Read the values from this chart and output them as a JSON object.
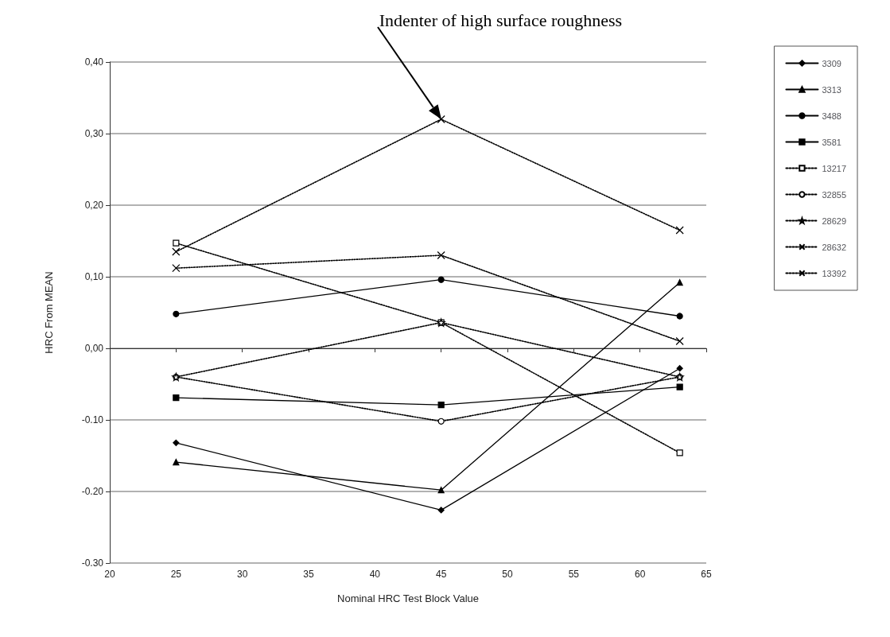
{
  "chart_data": {
    "type": "line",
    "xlabel": "Nominal HRC Test Block Value",
    "ylabel": "HRC From MEAN",
    "x": [
      25,
      45,
      63
    ],
    "xlim": [
      20,
      65
    ],
    "xticks": [
      20,
      25,
      30,
      35,
      40,
      45,
      50,
      55,
      60,
      65
    ],
    "ylim": [
      -0.3,
      0.4
    ],
    "yticks": [
      {
        "value": -0.3,
        "label": "-0.30"
      },
      {
        "value": -0.2,
        "label": "-0.20"
      },
      {
        "value": -0.1,
        "label": "-0.10"
      },
      {
        "value": 0,
        "label": "0,00"
      },
      {
        "value": 0.1,
        "label": "0,10"
      },
      {
        "value": 0.2,
        "label": "0,20"
      },
      {
        "value": 0.3,
        "label": "0,30"
      },
      {
        "value": 0.4,
        "label": "0,40"
      }
    ],
    "grid": "y",
    "legend": "right",
    "annotations": [
      "Indenter of high surface roughness"
    ],
    "series": [
      {
        "name": "3309",
        "color": "#000000",
        "marker": "diamond",
        "line_style": "solid",
        "values": [
          -0.132,
          -0.226,
          -0.028
        ]
      },
      {
        "name": "3313",
        "color": "#000000",
        "marker": "triangle",
        "line_style": "solid",
        "values": [
          -0.159,
          -0.198,
          0.092
        ]
      },
      {
        "name": "3488",
        "color": "#000000",
        "marker": "circle",
        "line_style": "solid",
        "values": [
          0.048,
          0.096,
          0.045
        ]
      },
      {
        "name": "3581",
        "color": "#000000",
        "marker": "square",
        "line_style": "solid",
        "values": [
          -0.069,
          -0.079,
          -0.054
        ]
      },
      {
        "name": "13217",
        "color": "#000000",
        "marker": "square",
        "line_style": "dotted",
        "values": [
          0.147,
          0.036,
          -0.146
        ]
      },
      {
        "name": "32855",
        "color": "#000000",
        "marker": "circle",
        "line_style": "dotted",
        "values": [
          -0.04,
          -0.102,
          -0.04
        ]
      },
      {
        "name": "28629",
        "color": "#000000",
        "marker": "star",
        "line_style": "dotted",
        "values": [
          -0.04,
          0.036,
          -0.04
        ]
      },
      {
        "name": "28632",
        "color": "#000000",
        "marker": "cross",
        "line_style": "dotted",
        "values": [
          0.112,
          0.13,
          0.01
        ]
      },
      {
        "name": "13392",
        "color": "#000000",
        "marker": "cross",
        "line_style": "dotted",
        "values": [
          0.135,
          0.32,
          0.165
        ]
      }
    ]
  }
}
